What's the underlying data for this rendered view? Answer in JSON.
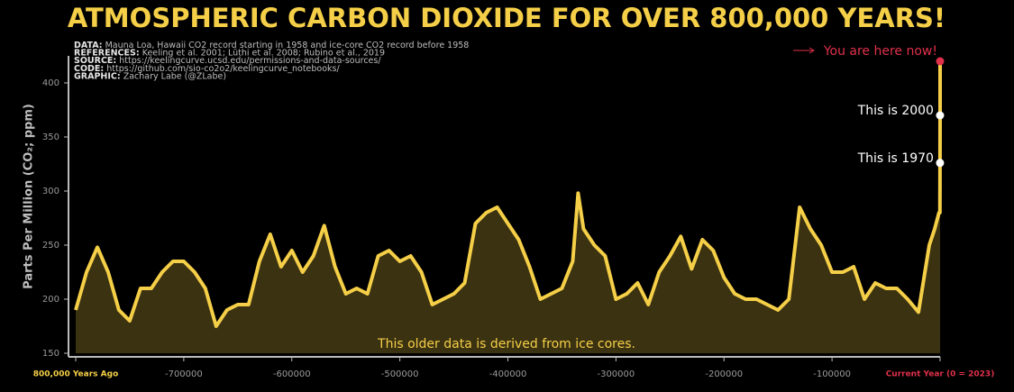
{
  "chart_data": {
    "type": "line",
    "title": "ATMOSPHERIC CARBON DIOXIDE FOR OVER 800,000 YEARS!",
    "notes": [
      {
        "key": "DATA:",
        "text": "Mauna Loa, Hawaii CO2 record starting in 1958 and ice-core CO2 record before 1958"
      },
      {
        "key": "REFERENCES:",
        "text": "Keeling et al. 2001; Lüthi et al. 2008; Rubino et al., 2019"
      },
      {
        "key": "SOURCE:",
        "text": "https://keelingcurve.ucsd.edu/permissions-and-data-sources/"
      },
      {
        "key": "CODE:",
        "text": "https://github.com/sio-co2o2/keelingcurve_notebooks/"
      },
      {
        "key": "GRAPHIC:",
        "text": "Zachary Labe (@ZLabe)"
      }
    ],
    "y_label": "Parts Per Million (CO₂; ppm)",
    "footnote": "This older data is derived from ice cores.",
    "color": "#f5cf47",
    "fill": "#3b3212",
    "x": [
      -800000,
      -790000,
      -780000,
      -770000,
      -760000,
      -750000,
      -740000,
      -730000,
      -720000,
      -710000,
      -700000,
      -690000,
      -680000,
      -670000,
      -660000,
      -650000,
      -640000,
      -630000,
      -620000,
      -610000,
      -600000,
      -590000,
      -580000,
      -570000,
      -560000,
      -550000,
      -540000,
      -530000,
      -520000,
      -510000,
      -500000,
      -490000,
      -480000,
      -470000,
      -460000,
      -450000,
      -440000,
      -430000,
      -420000,
      -410000,
      -400000,
      -390000,
      -380000,
      -370000,
      -360000,
      -350000,
      -340000,
      -335000,
      -330000,
      -320000,
      -310000,
      -300000,
      -290000,
      -280000,
      -270000,
      -260000,
      -250000,
      -240000,
      -230000,
      -220000,
      -210000,
      -200000,
      -190000,
      -180000,
      -170000,
      -160000,
      -150000,
      -140000,
      -130000,
      -120000,
      -110000,
      -100000,
      -90000,
      -80000,
      -70000,
      -60000,
      -50000,
      -40000,
      -30000,
      -20000,
      -10000,
      -5000,
      -1000,
      -200,
      -65,
      -53,
      -23,
      0
    ],
    "values": [
      190,
      225,
      248,
      225,
      190,
      180,
      210,
      210,
      225,
      235,
      235,
      225,
      210,
      175,
      190,
      195,
      195,
      235,
      260,
      230,
      245,
      225,
      240,
      268,
      230,
      205,
      210,
      205,
      240,
      245,
      235,
      240,
      225,
      195,
      200,
      205,
      215,
      270,
      280,
      285,
      270,
      255,
      230,
      200,
      205,
      210,
      235,
      298,
      265,
      250,
      240,
      200,
      205,
      215,
      195,
      225,
      240,
      258,
      228,
      255,
      245,
      220,
      205,
      200,
      200,
      195,
      190,
      200,
      285,
      265,
      250,
      225,
      225,
      230,
      200,
      215,
      210,
      210,
      200,
      188,
      250,
      265,
      280,
      280,
      315,
      326,
      370,
      420
    ],
    "annotations": [
      {
        "text": "This is 2000",
        "x": -23,
        "y": 370,
        "color": "#ffffff"
      },
      {
        "text": "This is 1970",
        "x": -53,
        "y": 326,
        "color": "#ffffff"
      },
      {
        "text": "You are here now!",
        "x": 0,
        "y": 420,
        "color": "#e0304a"
      }
    ],
    "xlim": [
      -800000,
      0
    ],
    "ylim": [
      150,
      425
    ],
    "xticks": [
      {
        "value": -800000,
        "label": "800,000 Years Ago",
        "color": "#f5cf47"
      },
      -700000,
      -600000,
      -500000,
      -400000,
      -300000,
      -200000,
      -100000,
      {
        "value": 0,
        "label": "Current Year (0 = 2023)",
        "color": "#e0304a"
      }
    ],
    "yticks": [
      150,
      200,
      250,
      300,
      350,
      400
    ]
  }
}
